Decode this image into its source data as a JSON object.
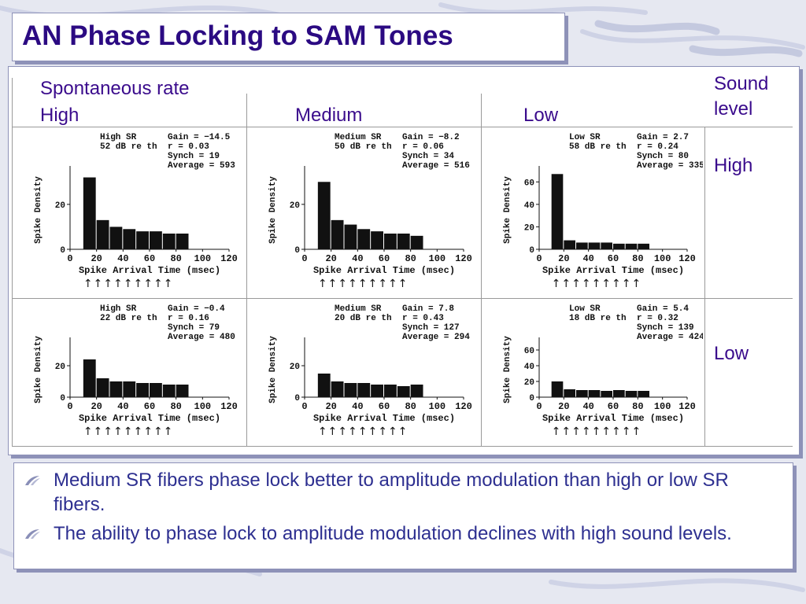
{
  "title": "AN Phase Locking to SAM Tones",
  "columns": {
    "title": "Spontaneous rate",
    "labels": [
      "High",
      "Medium",
      "Low"
    ]
  },
  "rows": {
    "title": "Sound level",
    "labels": [
      "High",
      "Low"
    ]
  },
  "bullets": [
    "Medium SR fibers phase lock better to amplitude modulation than high or low SR fibers.",
    "The ability to phase lock to amplitude modulation declines with high sound levels."
  ],
  "colors": {
    "title": "#2b0a82",
    "header": "#3a0b8c",
    "bullet_text": "#2d2f90",
    "frame": "#8d91b8"
  },
  "chart_data": [
    {
      "type": "bar",
      "panel": "high-sr-high-level",
      "label_left": [
        "High SR",
        "52 dB re th"
      ],
      "stats": [
        "Gain = −14.5",
        "r = 0.03",
        "Synch = 19",
        "Average = 593"
      ],
      "xlabel": "Spike Arrival Time (msec)",
      "ylabel": "Spike Density",
      "xticks": [
        "0",
        "20",
        "40",
        "60",
        "80",
        "100",
        "120"
      ],
      "yticks": [
        "0",
        "20"
      ],
      "xlim": [
        0,
        120
      ],
      "ylim": [
        0,
        35
      ],
      "arrows": "↑↑↑↑↑↑↑↑↑",
      "series": [
        {
          "x": [
            10,
            20,
            30,
            40,
            50,
            60,
            70,
            80
          ],
          "values": [
            32,
            13,
            10,
            9,
            8,
            8,
            7,
            7
          ]
        }
      ]
    },
    {
      "type": "bar",
      "panel": "medium-sr-high-level",
      "label_left": [
        "Medium SR",
        "50 dB re th"
      ],
      "stats": [
        "Gain = −8.2",
        "r = 0.06",
        "Synch = 34",
        "Average = 516"
      ],
      "xlabel": "Spike Arrival Time (msec)",
      "ylabel": "Spike Density",
      "xticks": [
        "0",
        "20",
        "40",
        "60",
        "80",
        "100",
        "120"
      ],
      "yticks": [
        "0",
        "20"
      ],
      "xlim": [
        0,
        120
      ],
      "ylim": [
        0,
        35
      ],
      "arrows": "↑↑↑↑↑↑↑↑↑",
      "series": [
        {
          "x": [
            10,
            20,
            30,
            40,
            50,
            60,
            70,
            80
          ],
          "values": [
            30,
            13,
            11,
            9,
            8,
            7,
            7,
            6
          ]
        }
      ]
    },
    {
      "type": "bar",
      "panel": "low-sr-high-level",
      "label_left": [
        "Low SR",
        "58 dB re th"
      ],
      "stats": [
        "Gain = 2.7",
        "r = 0.24",
        "Synch = 80",
        "Average = 335"
      ],
      "xlabel": "Spike Arrival Time (msec)",
      "ylabel": "Spike Density",
      "xticks": [
        "0",
        "20",
        "40",
        "60",
        "80",
        "100",
        "120"
      ],
      "yticks": [
        "0",
        "20",
        "40",
        "60"
      ],
      "xlim": [
        0,
        120
      ],
      "ylim": [
        0,
        70
      ],
      "arrows": "↑↑↑↑↑↑↑↑↑",
      "series": [
        {
          "x": [
            10,
            20,
            30,
            40,
            50,
            60,
            70,
            80
          ],
          "values": [
            67,
            8,
            6,
            6,
            6,
            5,
            5,
            5
          ]
        }
      ]
    },
    {
      "type": "bar",
      "panel": "high-sr-low-level",
      "label_left": [
        "High SR",
        "22 dB re th"
      ],
      "stats": [
        "Gain = −0.4",
        "r = 0.16",
        "Synch = 79",
        "Average = 480"
      ],
      "xlabel": "Spike Arrival Time (msec)",
      "ylabel": "Spike Density",
      "xticks": [
        "0",
        "20",
        "40",
        "60",
        "80",
        "100",
        "120"
      ],
      "yticks": [
        "0",
        "20"
      ],
      "xlim": [
        0,
        120
      ],
      "ylim": [
        0,
        35
      ],
      "arrows": "↑↑↑↑↑↑↑↑↑",
      "series": [
        {
          "x": [
            10,
            20,
            30,
            40,
            50,
            60,
            70,
            80
          ],
          "values": [
            24,
            12,
            10,
            10,
            9,
            9,
            8,
            8
          ]
        }
      ]
    },
    {
      "type": "bar",
      "panel": "medium-sr-low-level",
      "label_left": [
        "Medium SR",
        "20 dB re th"
      ],
      "stats": [
        "Gain = 7.8",
        "r = 0.43",
        "Synch = 127",
        "Average = 294"
      ],
      "xlabel": "Spike Arrival Time (msec)",
      "ylabel": "Spike Density",
      "xticks": [
        "0",
        "20",
        "40",
        "60",
        "80",
        "100",
        "120"
      ],
      "yticks": [
        "0",
        "20"
      ],
      "xlim": [
        0,
        120
      ],
      "ylim": [
        0,
        35
      ],
      "arrows": "↑↑↑↑↑↑↑↑↑",
      "series": [
        {
          "x": [
            10,
            20,
            30,
            40,
            50,
            60,
            70,
            80
          ],
          "values": [
            15,
            10,
            9,
            9,
            8,
            8,
            7,
            8
          ]
        }
      ]
    },
    {
      "type": "bar",
      "panel": "low-sr-low-level",
      "label_left": [
        "Low SR",
        "18 dB re th"
      ],
      "stats": [
        "Gain = 5.4",
        "r = 0.32",
        "Synch = 139",
        "Average = 424"
      ],
      "xlabel": "Spike Arrival Time (msec)",
      "ylabel": "Spike Density",
      "xticks": [
        "0",
        "20",
        "40",
        "60",
        "80",
        "100",
        "120"
      ],
      "yticks": [
        "0",
        "20",
        "40",
        "60"
      ],
      "xlim": [
        0,
        120
      ],
      "ylim": [
        0,
        70
      ],
      "arrows": "↑↑↑↑↑↑↑↑↑",
      "series": [
        {
          "x": [
            10,
            20,
            30,
            40,
            50,
            60,
            70,
            80
          ],
          "values": [
            20,
            10,
            9,
            9,
            8,
            9,
            8,
            8
          ]
        }
      ]
    }
  ]
}
